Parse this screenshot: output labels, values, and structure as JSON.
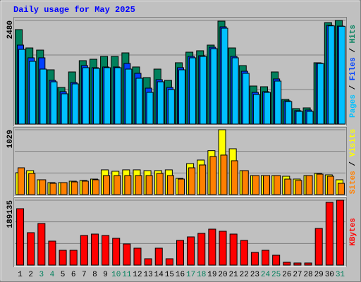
{
  "chart_data": [
    {
      "type": "bar",
      "title": "Daily usage for May 2025",
      "ylim": [
        0,
        2480
      ],
      "yticks": [
        2480
      ],
      "legend_separator": " / ",
      "series": [
        {
          "name": "Pages",
          "color": "#00c0ff",
          "values": [
            1788,
            1502,
            1316,
            1012,
            725,
            962,
            1350,
            1333,
            1350,
            1350,
            1316,
            1097,
            759,
            1012,
            827,
            1299,
            1586,
            1620,
            1805,
            2294,
            1586,
            1215,
            709,
            759,
            1029,
            540,
            304,
            304,
            1450,
            2350,
            2340
          ]
        },
        {
          "name": "Files",
          "color": "#0040ff",
          "values": [
            1890,
            1586,
            1586,
            1046,
            776,
            995,
            1400,
            1350,
            1367,
            1367,
            1451,
            1215,
            860,
            1063,
            877,
            1350,
            1620,
            1636,
            1839,
            2328,
            1620,
            1265,
            759,
            776,
            1080,
            557,
            321,
            337,
            1460,
            2362,
            2345
          ]
        },
        {
          "name": "Hits",
          "color": "#00805c",
          "values": [
            2261,
            1822,
            1771,
            1299,
            877,
            1248,
            1518,
            1552,
            1620,
            1620,
            1704,
            1367,
            1113,
            1316,
            1046,
            1468,
            1721,
            1755,
            1890,
            2463,
            1822,
            1400,
            911,
            894,
            1248,
            590,
            371,
            388,
            1468,
            2429,
            2480
          ]
        }
      ]
    },
    {
      "type": "bar",
      "ylim": [
        0,
        1029
      ],
      "yticks": [
        1029
      ],
      "legend_separator": " / ",
      "series": [
        {
          "name": "Sites",
          "color": "#ff8000",
          "values": [
            425,
            336,
            235,
            179,
            190,
            201,
            213,
            235,
            302,
            302,
            302,
            302,
            302,
            336,
            302,
            246,
            425,
            470,
            604,
            627,
            537,
            380,
            302,
            302,
            302,
            246,
            224,
            302,
            324,
            291,
            179
          ]
        },
        {
          "name": "Visits",
          "color": "#ffff00",
          "values": [
            347,
            380,
            235,
            190,
            190,
            213,
            224,
            246,
            392,
            370,
            392,
            392,
            380,
            380,
            392,
            257,
            492,
            548,
            697,
            1029,
            727,
            380,
            302,
            302,
            302,
            291,
            246,
            302,
            336,
            313,
            235
          ]
        }
      ]
    },
    {
      "type": "bar",
      "ylim": [
        0,
        189135
      ],
      "yticks": [
        189135
      ],
      "categories": [
        "1",
        "2",
        "3",
        "4",
        "5",
        "6",
        "7",
        "8",
        "9",
        "10",
        "11",
        "12",
        "13",
        "14",
        "15",
        "16",
        "17",
        "18",
        "19",
        "20",
        "21",
        "22",
        "23",
        "24",
        "25",
        "26",
        "27",
        "28",
        "29",
        "30",
        "31"
      ],
      "category_colors": [
        "#000000",
        "#000000",
        "#00805c",
        "#00805c",
        "#000000",
        "#000000",
        "#000000",
        "#000000",
        "#000000",
        "#00805c",
        "#00805c",
        "#000000",
        "#000000",
        "#000000",
        "#000000",
        "#000000",
        "#00805c",
        "#00805c",
        "#000000",
        "#000000",
        "#000000",
        "#000000",
        "#000000",
        "#00805c",
        "#00805c",
        "#000000",
        "#000000",
        "#000000",
        "#000000",
        "#000000",
        "#00805c"
      ],
      "series": [
        {
          "name": "KBytes",
          "color": "#ff0000",
          "values": [
            164465,
            94568,
            121293,
            69898,
            43172,
            43172,
            86345,
            90456,
            86345,
            78121,
            61674,
            49340,
            18503,
            49340,
            18503,
            71954,
            82233,
            92512,
            104846,
            98679,
            90456,
            71954,
            37005,
            43172,
            28781,
            8223,
            6167,
            6167,
            106902,
            182966,
            189135
          ]
        }
      ]
    }
  ]
}
